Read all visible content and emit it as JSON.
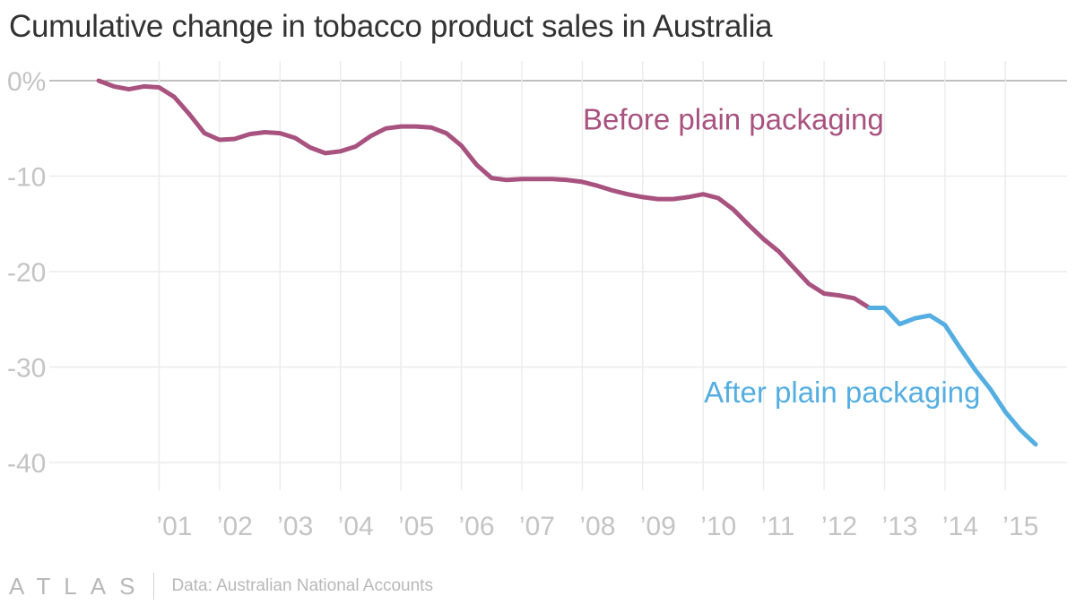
{
  "chart_data": {
    "type": "line",
    "title": "Cumulative change in tobacco product sales in Australia",
    "xlabel": "",
    "ylabel": "",
    "y_ticks": [
      {
        "value": 0,
        "label": "0%"
      },
      {
        "value": -10,
        "label": "-10"
      },
      {
        "value": -20,
        "label": "-20"
      },
      {
        "value": -30,
        "label": "-30"
      },
      {
        "value": -40,
        "label": "-40"
      }
    ],
    "ylim": [
      -43,
      2
    ],
    "x_ticks": [
      {
        "value": 2001,
        "label": "’01"
      },
      {
        "value": 2002,
        "label": "’02"
      },
      {
        "value": 2003,
        "label": "’03"
      },
      {
        "value": 2004,
        "label": "’04"
      },
      {
        "value": 2005,
        "label": "’05"
      },
      {
        "value": 2006,
        "label": "’06"
      },
      {
        "value": 2007,
        "label": "’07"
      },
      {
        "value": 2008,
        "label": "’08"
      },
      {
        "value": 2009,
        "label": "’09"
      },
      {
        "value": 2010,
        "label": "’10"
      },
      {
        "value": 2011,
        "label": "’11"
      },
      {
        "value": 2012,
        "label": "’12"
      },
      {
        "value": 2013,
        "label": "’13"
      },
      {
        "value": 2014,
        "label": "’14"
      },
      {
        "value": 2015,
        "label": "’15"
      }
    ],
    "xlim": [
      1999.9,
      2016.0
    ],
    "series": [
      {
        "name": "Before plain packaging",
        "color": "#a8527f",
        "x": [
          2000.0,
          2000.25,
          2000.5,
          2000.75,
          2001.0,
          2001.25,
          2001.5,
          2001.75,
          2002.0,
          2002.25,
          2002.5,
          2002.75,
          2003.0,
          2003.25,
          2003.5,
          2003.75,
          2004.0,
          2004.25,
          2004.5,
          2004.75,
          2005.0,
          2005.25,
          2005.5,
          2005.75,
          2006.0,
          2006.25,
          2006.5,
          2006.75,
          2007.0,
          2007.25,
          2007.5,
          2007.75,
          2008.0,
          2008.25,
          2008.5,
          2008.75,
          2009.0,
          2009.25,
          2009.5,
          2009.75,
          2010.0,
          2010.25,
          2010.5,
          2010.75,
          2011.0,
          2011.25,
          2011.5,
          2011.75,
          2012.0,
          2012.25,
          2012.5,
          2012.75
        ],
        "values": [
          0.0,
          -0.6,
          -0.9,
          -0.6,
          -0.7,
          -1.7,
          -3.5,
          -5.5,
          -6.2,
          -6.1,
          -5.6,
          -5.4,
          -5.5,
          -6.0,
          -7.0,
          -7.6,
          -7.4,
          -6.9,
          -5.8,
          -5.0,
          -4.8,
          -4.8,
          -4.9,
          -5.5,
          -6.8,
          -8.8,
          -10.2,
          -10.4,
          -10.3,
          -10.3,
          -10.3,
          -10.4,
          -10.6,
          -11.0,
          -11.5,
          -11.9,
          -12.2,
          -12.4,
          -12.4,
          -12.2,
          -11.9,
          -12.3,
          -13.5,
          -15.1,
          -16.6,
          -17.9,
          -19.6,
          -21.3,
          -22.3,
          -22.5,
          -22.8,
          -23.8
        ]
      },
      {
        "name": "After plain packaging",
        "color": "#55aee1",
        "x": [
          2012.75,
          2013.0,
          2013.25,
          2013.5,
          2013.75,
          2014.0,
          2014.25,
          2014.5,
          2014.75,
          2015.0,
          2015.25,
          2015.5
        ],
        "values": [
          -23.8,
          -23.8,
          -25.5,
          -24.9,
          -24.6,
          -25.6,
          -28.0,
          -30.3,
          -32.3,
          -34.7,
          -36.6,
          -38.1
        ]
      }
    ],
    "annotations": [
      {
        "text": "Before plain packaging",
        "series": 0,
        "x": 2010.5,
        "y": -5.1
      },
      {
        "text": "After plain packaging",
        "series": 1,
        "x": 2012.3,
        "y": -33.7
      }
    ]
  },
  "footer": {
    "logo": "ATLAS",
    "source": "Data: Australian National Accounts"
  }
}
